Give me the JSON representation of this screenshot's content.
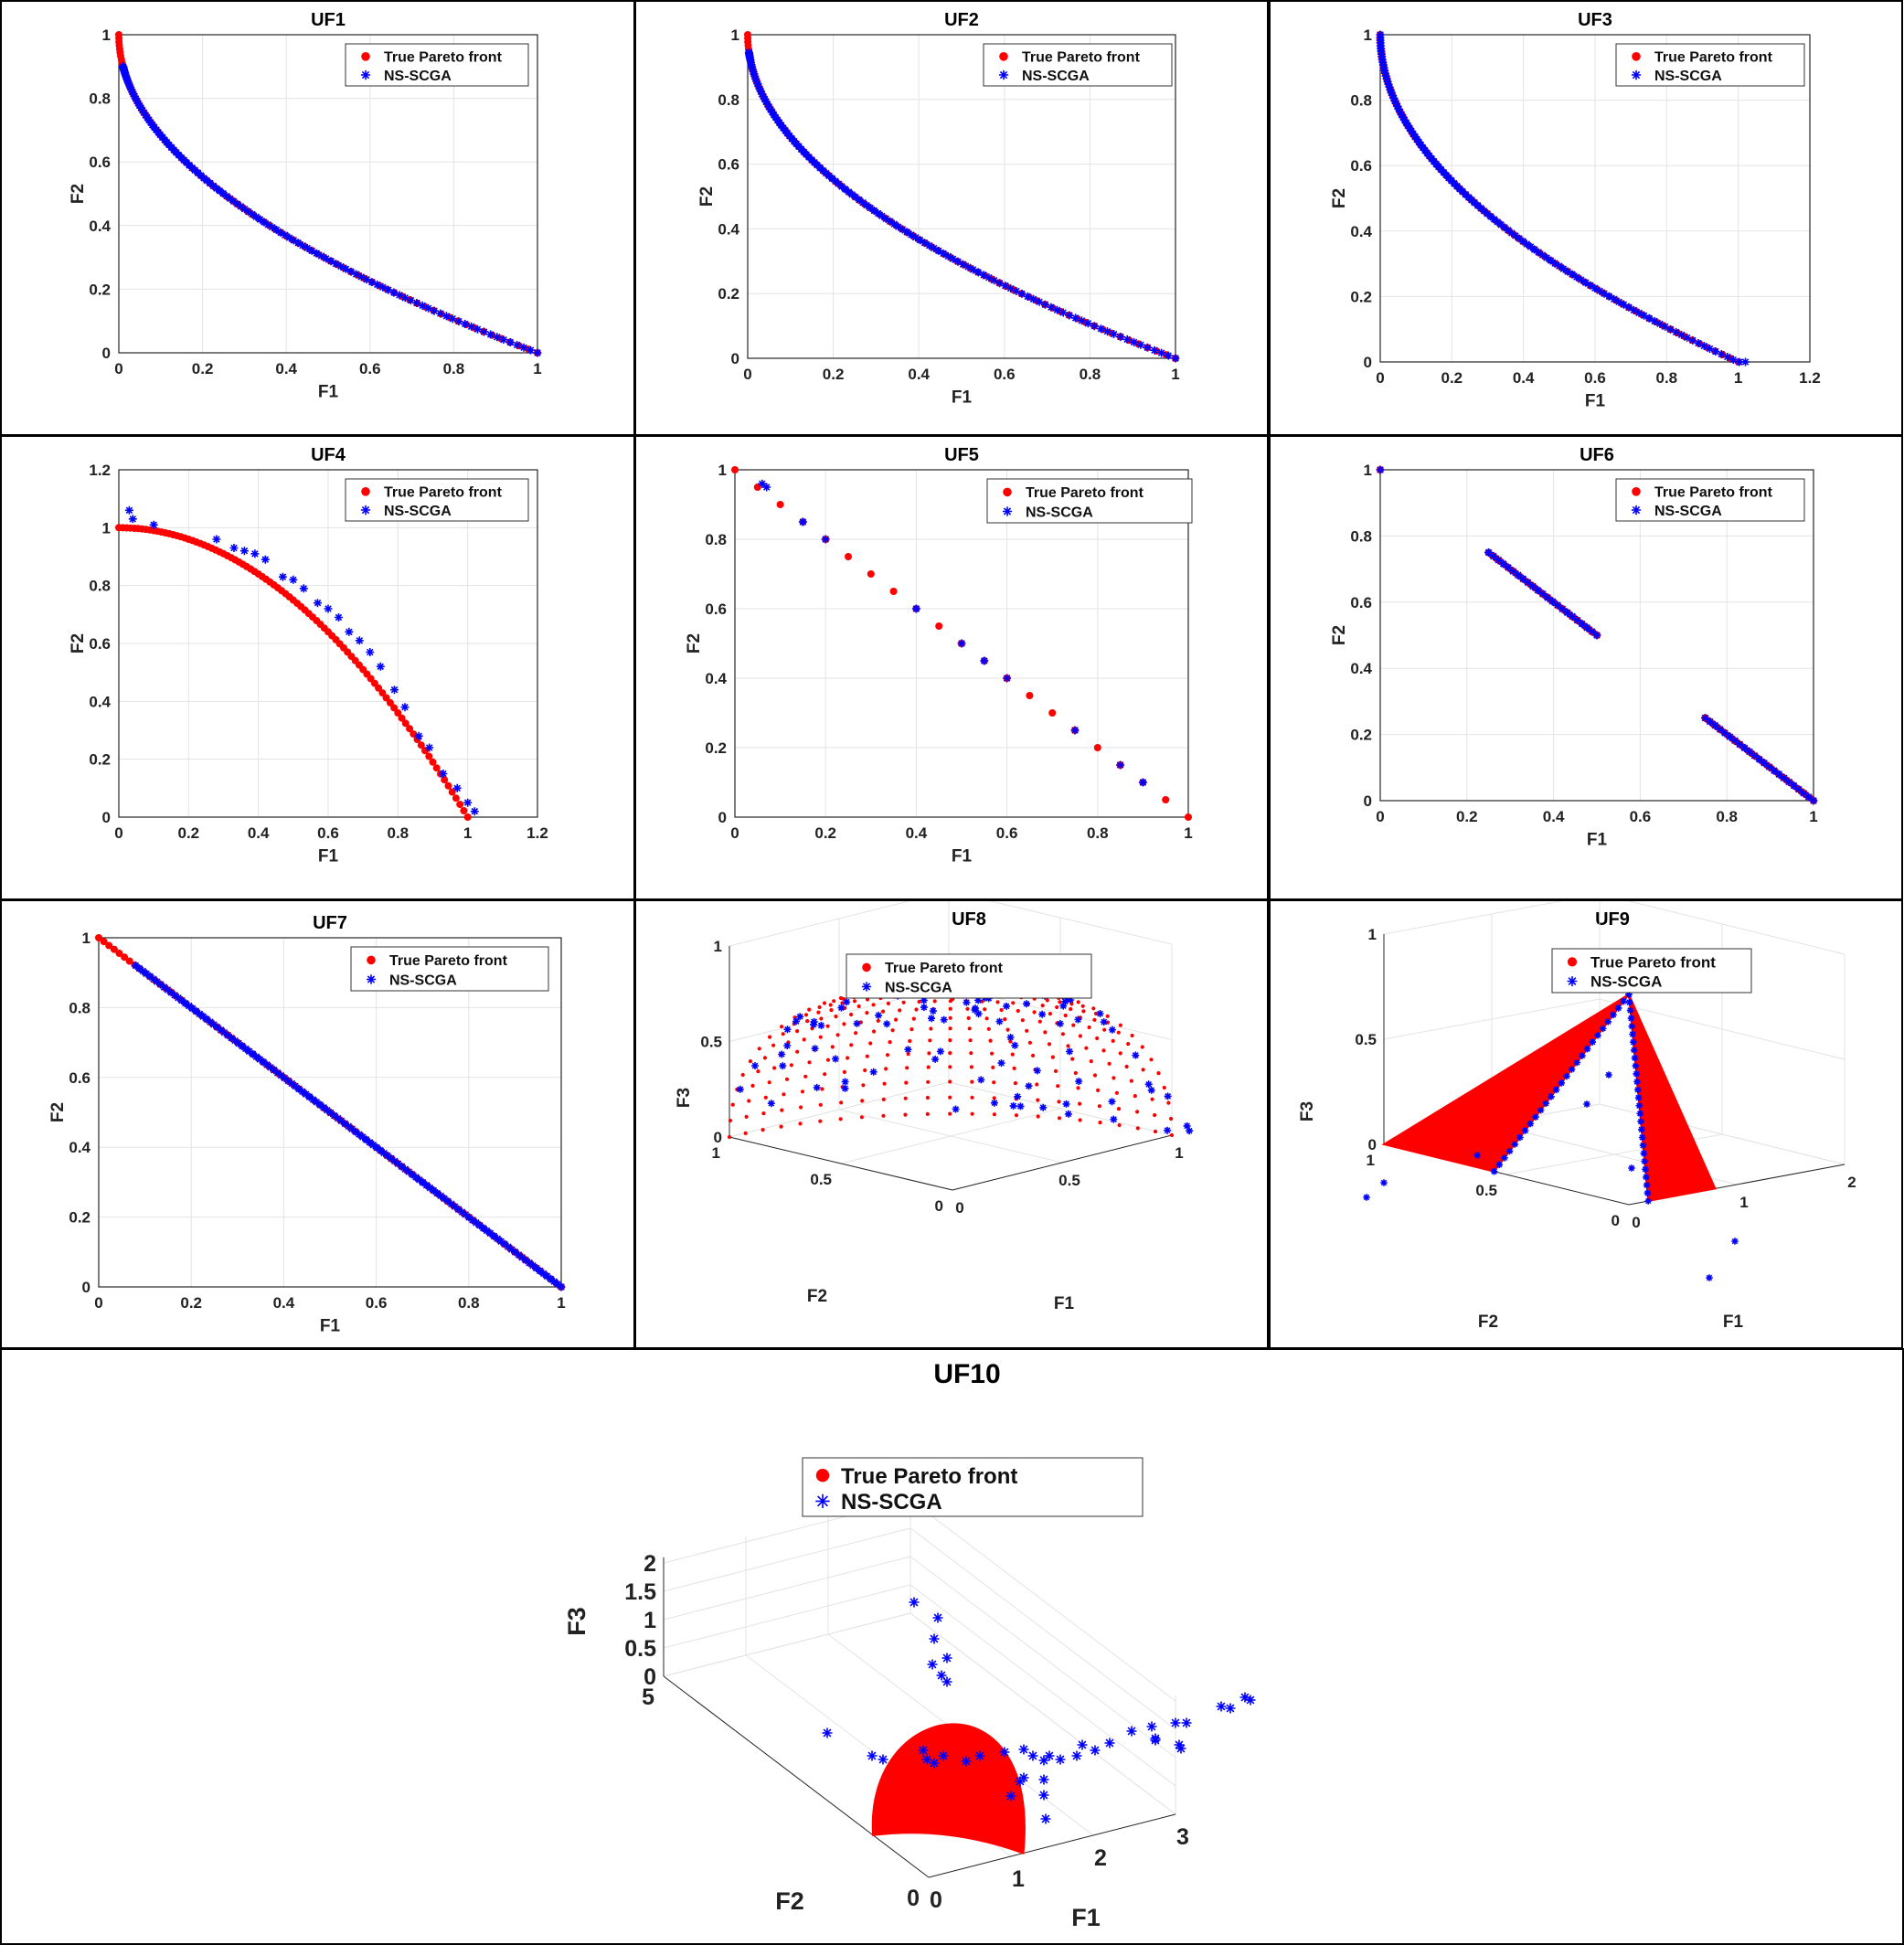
{
  "colors": {
    "true_front": "#ff0000",
    "ns_scga": "#0000ff",
    "grid": "#e3e3e3",
    "axis": "#262626"
  },
  "legend": {
    "true_label": "True Pareto front",
    "ns_label": "NS-SCGA",
    "placement": "top-right"
  },
  "chart_data": [
    {
      "id": "uf1",
      "type": "scatter",
      "title": "UF1",
      "xlabel": "F1",
      "ylabel": "F2",
      "xlim": [
        0,
        1
      ],
      "ylim": [
        0,
        1
      ],
      "xticks": [
        "0",
        "0.2",
        "0.4",
        "0.6",
        "0.8",
        "1"
      ],
      "yticks": [
        "0",
        "0.2",
        "0.4",
        "0.6",
        "0.8",
        "1"
      ],
      "grid": true,
      "series": [
        {
          "name": "True Pareto front",
          "curve": "1-sqrt(x)",
          "x_range": [
            0,
            1
          ],
          "marker": "dot"
        },
        {
          "name": "NS-SCGA",
          "curve": "1-sqrt(x)",
          "x_range": [
            0.01,
            1
          ],
          "marker": "star"
        }
      ]
    },
    {
      "id": "uf2",
      "type": "scatter",
      "title": "UF2",
      "xlabel": "F1",
      "ylabel": "F2",
      "xlim": [
        0,
        1
      ],
      "ylim": [
        0,
        1
      ],
      "xticks": [
        "0",
        "0.2",
        "0.4",
        "0.6",
        "0.8",
        "1"
      ],
      "yticks": [
        "0",
        "0.2",
        "0.4",
        "0.6",
        "0.8",
        "1"
      ],
      "grid": true,
      "series": [
        {
          "name": "True Pareto front",
          "curve": "1-sqrt(x)",
          "x_range": [
            0,
            1
          ],
          "marker": "dot"
        },
        {
          "name": "NS-SCGA",
          "curve": "1-sqrt(x)",
          "x_range": [
            0.003,
            1
          ],
          "marker": "star"
        }
      ]
    },
    {
      "id": "uf3",
      "type": "scatter",
      "title": "UF3",
      "xlabel": "F1",
      "ylabel": "F2",
      "xlim": [
        0,
        1.2
      ],
      "ylim": [
        0,
        1
      ],
      "xticks": [
        "0",
        "0.2",
        "0.4",
        "0.6",
        "0.8",
        "1",
        "1.2"
      ],
      "yticks": [
        "0",
        "0.2",
        "0.4",
        "0.6",
        "0.8",
        "1"
      ],
      "grid": true,
      "series": [
        {
          "name": "True Pareto front",
          "curve": "1-sqrt(x)",
          "x_range": [
            0,
            1
          ],
          "marker": "dot"
        },
        {
          "name": "NS-SCGA",
          "curve": "1-sqrt(x)",
          "x_range": [
            0,
            1.02
          ],
          "marker": "star"
        }
      ]
    },
    {
      "id": "uf4",
      "type": "scatter",
      "title": "UF4",
      "xlabel": "F1",
      "ylabel": "F2",
      "xlim": [
        0,
        1.2
      ],
      "ylim": [
        0,
        1.2
      ],
      "xticks": [
        "0",
        "0.2",
        "0.4",
        "0.6",
        "0.8",
        "1",
        "1.2"
      ],
      "yticks": [
        "0",
        "0.2",
        "0.4",
        "0.6",
        "0.8",
        "1",
        "1.2"
      ],
      "grid": true,
      "series": [
        {
          "name": "True Pareto front",
          "curve": "1-x^2",
          "x_range": [
            0,
            1
          ],
          "marker": "dot"
        },
        {
          "name": "NS-SCGA",
          "points": [
            [
              0.03,
              1.06
            ],
            [
              0.04,
              1.03
            ],
            [
              0.1,
              1.01
            ],
            [
              0.28,
              0.96
            ],
            [
              0.33,
              0.93
            ],
            [
              0.36,
              0.92
            ],
            [
              0.39,
              0.91
            ],
            [
              0.42,
              0.89
            ],
            [
              0.47,
              0.83
            ],
            [
              0.5,
              0.82
            ],
            [
              0.53,
              0.79
            ],
            [
              0.57,
              0.74
            ],
            [
              0.6,
              0.72
            ],
            [
              0.63,
              0.69
            ],
            [
              0.66,
              0.64
            ],
            [
              0.69,
              0.61
            ],
            [
              0.72,
              0.57
            ],
            [
              0.75,
              0.52
            ],
            [
              0.79,
              0.44
            ],
            [
              0.82,
              0.38
            ],
            [
              0.86,
              0.28
            ],
            [
              0.89,
              0.24
            ],
            [
              0.93,
              0.15
            ],
            [
              0.97,
              0.1
            ],
            [
              1.0,
              0.05
            ],
            [
              1.02,
              0.02
            ]
          ],
          "marker": "star"
        }
      ]
    },
    {
      "id": "uf5",
      "type": "scatter",
      "title": "UF5",
      "xlabel": "F1",
      "ylabel": "F2",
      "xlim": [
        0,
        1
      ],
      "ylim": [
        0,
        1
      ],
      "xticks": [
        "0",
        "0.2",
        "0.4",
        "0.6",
        "0.8",
        "1"
      ],
      "yticks": [
        "0",
        "0.2",
        "0.4",
        "0.6",
        "0.8",
        "1"
      ],
      "grid": true,
      "series": [
        {
          "name": "True Pareto front",
          "points": [
            [
              0,
              1
            ],
            [
              0.05,
              0.95
            ],
            [
              0.1,
              0.9
            ],
            [
              0.15,
              0.85
            ],
            [
              0.2,
              0.8
            ],
            [
              0.25,
              0.75
            ],
            [
              0.3,
              0.7
            ],
            [
              0.35,
              0.65
            ],
            [
              0.4,
              0.6
            ],
            [
              0.45,
              0.55
            ],
            [
              0.5,
              0.5
            ],
            [
              0.55,
              0.45
            ],
            [
              0.6,
              0.4
            ],
            [
              0.65,
              0.35
            ],
            [
              0.7,
              0.3
            ],
            [
              0.75,
              0.25
            ],
            [
              0.8,
              0.2
            ],
            [
              0.85,
              0.15
            ],
            [
              0.9,
              0.1
            ],
            [
              0.95,
              0.05
            ],
            [
              1,
              0
            ]
          ],
          "marker": "dot"
        },
        {
          "name": "NS-SCGA",
          "points": [
            [
              0.06,
              0.96
            ],
            [
              0.07,
              0.95
            ],
            [
              0.15,
              0.85
            ],
            [
              0.2,
              0.8
            ],
            [
              0.4,
              0.6
            ],
            [
              0.5,
              0.5
            ],
            [
              0.55,
              0.45
            ],
            [
              0.6,
              0.4
            ],
            [
              0.75,
              0.25
            ],
            [
              0.85,
              0.15
            ],
            [
              0.9,
              0.1
            ]
          ],
          "marker": "star"
        }
      ]
    },
    {
      "id": "uf6",
      "type": "scatter",
      "title": "UF6",
      "xlabel": "F1",
      "ylabel": "F2",
      "xlim": [
        0,
        1
      ],
      "ylim": [
        0,
        1
      ],
      "xticks": [
        "0",
        "0.2",
        "0.4",
        "0.6",
        "0.8",
        "1"
      ],
      "yticks": [
        "0",
        "0.2",
        "0.4",
        "0.6",
        "0.8",
        "1"
      ],
      "grid": true,
      "series": [
        {
          "name": "True Pareto front",
          "segments": [
            [
              0,
              0
            ],
            [
              0.25,
              0.5
            ],
            [
              0.75,
              1
            ]
          ],
          "marker": "dot"
        },
        {
          "name": "NS-SCGA",
          "segments": [
            [
              0,
              0
            ],
            [
              0.25,
              0.5
            ],
            [
              0.75,
              1
            ]
          ],
          "marker": "star"
        }
      ]
    },
    {
      "id": "uf7",
      "type": "scatter",
      "title": "UF7",
      "xlabel": "F1",
      "ylabel": "F2",
      "xlim": [
        0,
        1
      ],
      "ylim": [
        0,
        1
      ],
      "xticks": [
        "0",
        "0.2",
        "0.4",
        "0.6",
        "0.8",
        "1"
      ],
      "yticks": [
        "0",
        "0.2",
        "0.4",
        "0.6",
        "0.8",
        "1"
      ],
      "grid": true,
      "series": [
        {
          "name": "True Pareto front",
          "curve": "1-x",
          "x_range": [
            0,
            1
          ],
          "marker": "dot"
        },
        {
          "name": "NS-SCGA",
          "curve": "1-x",
          "x_range": [
            0.08,
            1
          ],
          "marker": "star"
        }
      ]
    },
    {
      "id": "uf8",
      "type": "scatter3d",
      "title": "UF8",
      "xlabel": "F1",
      "ylabel": "F2",
      "zlabel": "F3",
      "xticks": [
        "0",
        "0.5",
        "1"
      ],
      "yticks": [
        "0",
        "0.5",
        "1"
      ],
      "zticks": [
        "0",
        "0.5",
        "1"
      ],
      "grid": true,
      "series": [
        {
          "name": "True Pareto front",
          "surface": "unit sphere octant",
          "marker": "dot"
        },
        {
          "name": "NS-SCGA",
          "marker": "star"
        }
      ]
    },
    {
      "id": "uf9",
      "type": "scatter3d",
      "title": "UF9",
      "xlabel": "F1",
      "ylabel": "F2",
      "zlabel": "F3",
      "xticks": [
        "0",
        "1",
        "2"
      ],
      "yticks": [
        "0",
        "0.5",
        "1"
      ],
      "zticks": [
        "0",
        "0.5",
        "1"
      ],
      "grid": true,
      "series": [
        {
          "name": "True Pareto front",
          "surface": "two triangular planes",
          "marker": "dot"
        },
        {
          "name": "NS-SCGA",
          "marker": "star"
        }
      ]
    },
    {
      "id": "uf10",
      "type": "scatter3d",
      "title": "UF10",
      "xlabel": "F1",
      "ylabel": "F2",
      "zlabel": "F3",
      "xticks": [
        "0",
        "1",
        "2",
        "3"
      ],
      "yticks": [
        "0",
        "5"
      ],
      "zticks": [
        "0",
        "0.5",
        "1",
        "1.5",
        "2"
      ],
      "grid": true,
      "series": [
        {
          "name": "True Pareto front",
          "surface": "unit sphere octant",
          "marker": "dot"
        },
        {
          "name": "NS-SCGA",
          "marker": "star"
        }
      ]
    }
  ]
}
